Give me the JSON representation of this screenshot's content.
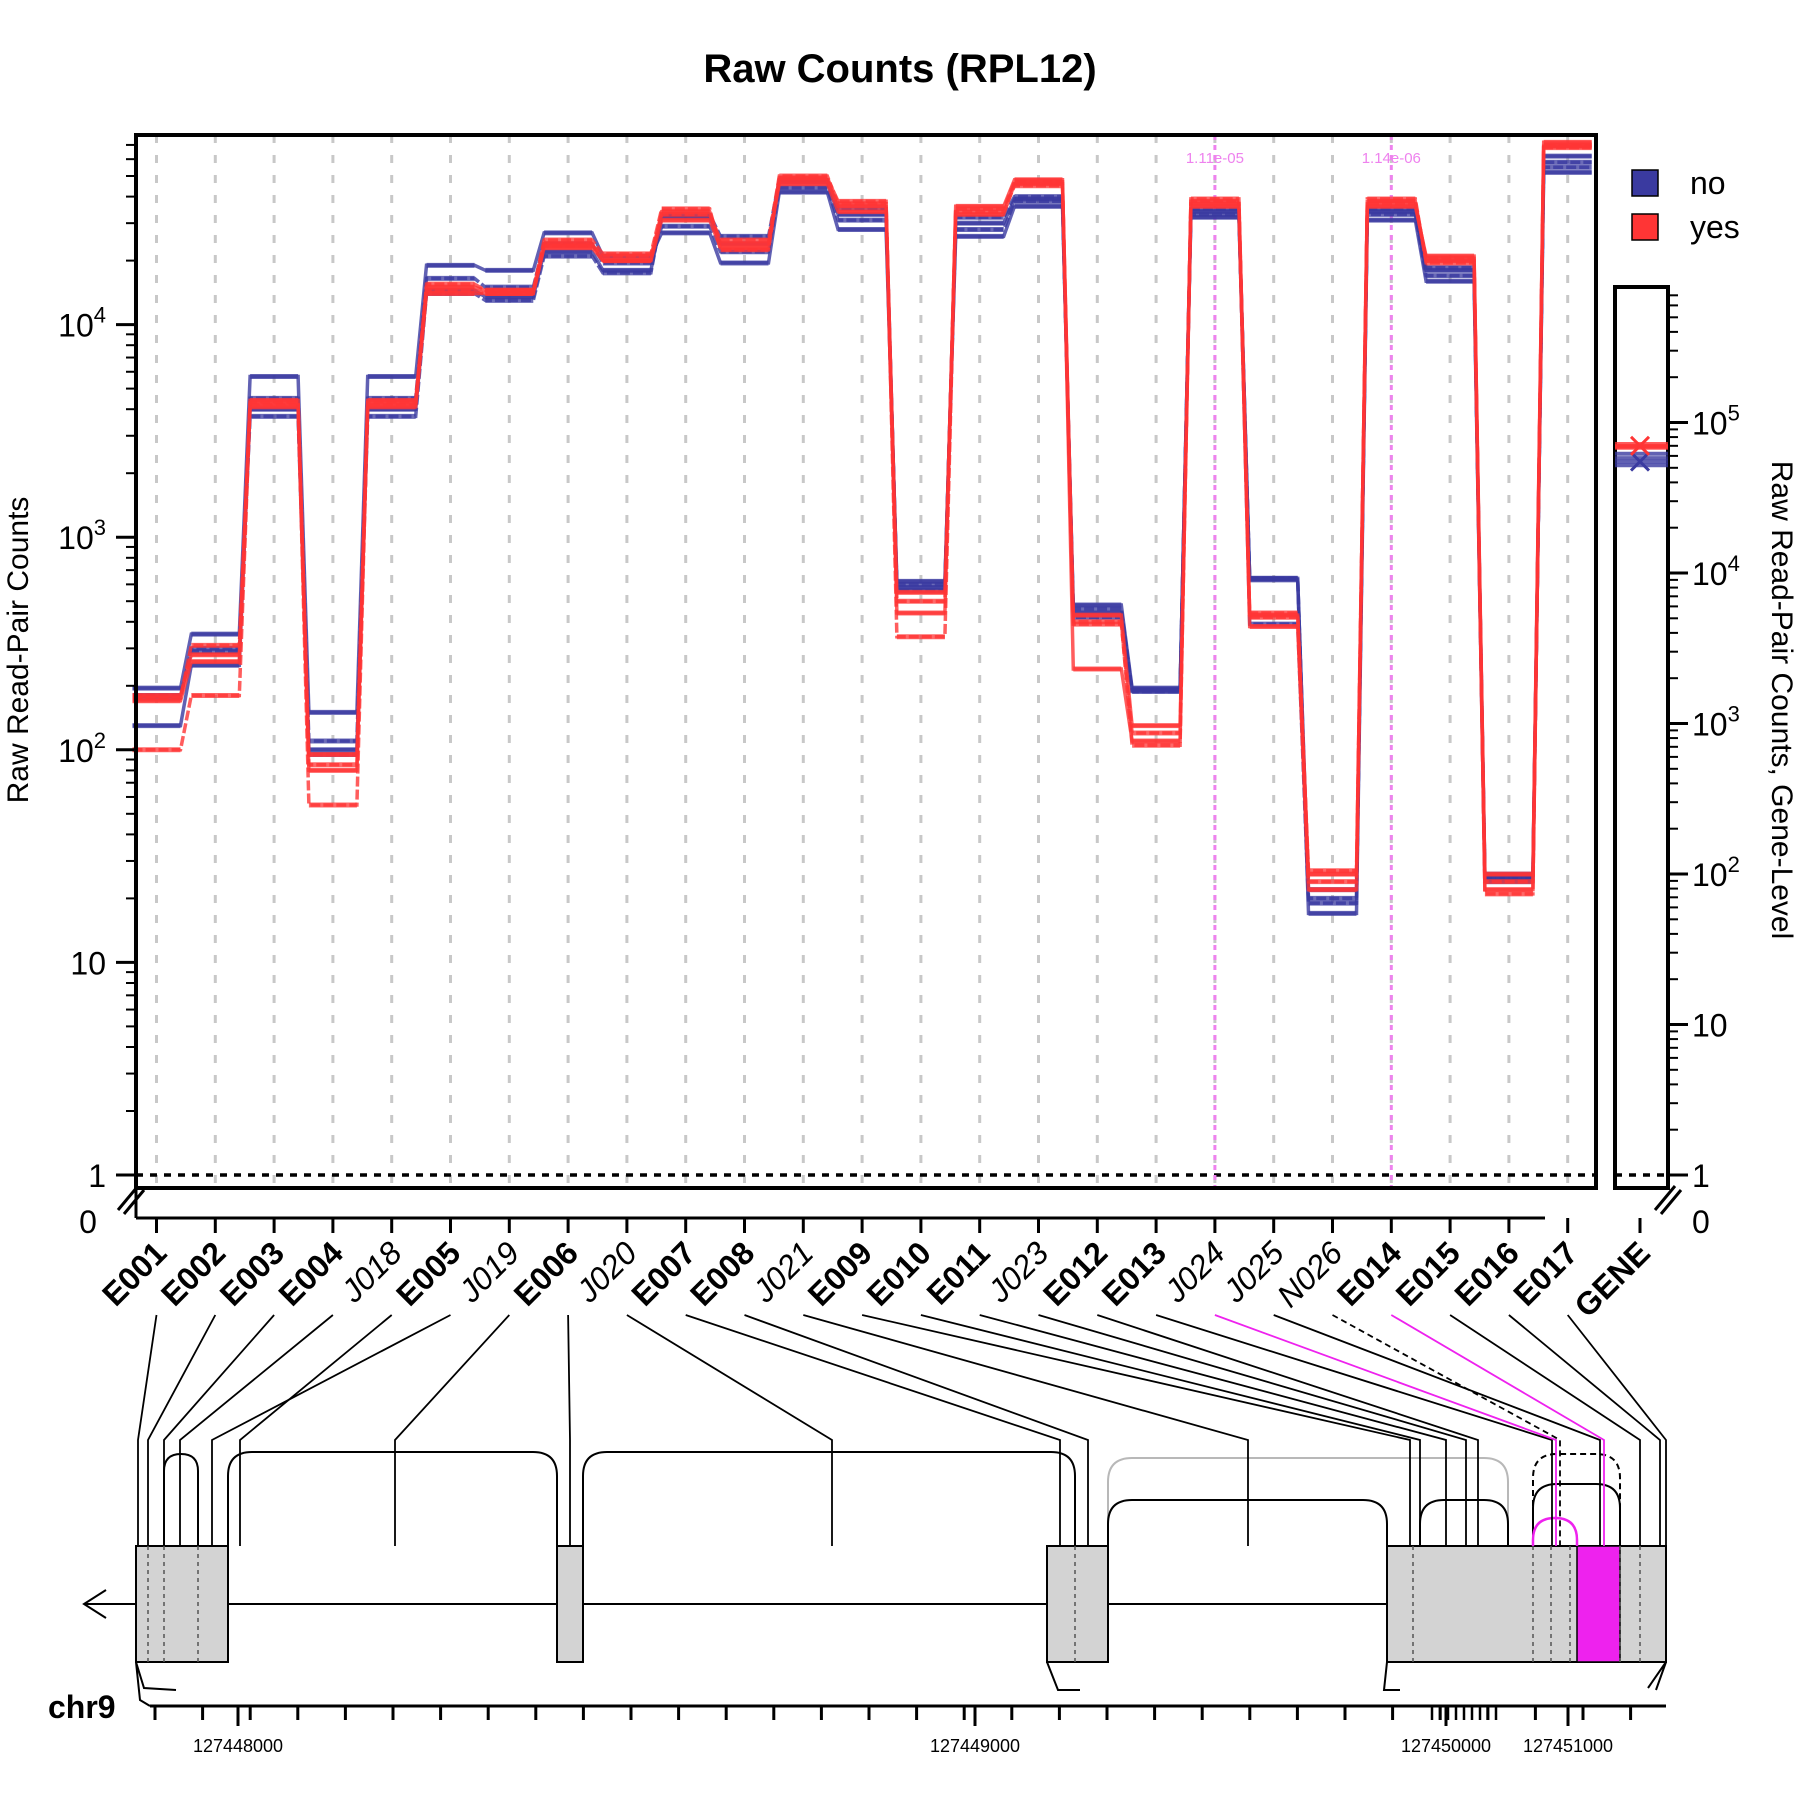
{
  "chart_data": {
    "type": "line",
    "title": "Raw Counts (RPL12)",
    "ylabel": "Raw Read-Pair Counts",
    "ylabel_right": "Raw Read-Pair Counts, Gene-Level",
    "y_scale": "log",
    "y_ticks_left": [
      "1",
      "10",
      "10^2",
      "10^3",
      "10^4"
    ],
    "y_ticks_right": [
      "1",
      "10",
      "10^2",
      "10^3",
      "10^4",
      "10^5"
    ],
    "y_zero_label": "0",
    "categories": [
      "E001",
      "E002",
      "E003",
      "E004",
      "J018",
      "E005",
      "J019",
      "E006",
      "J020",
      "E007",
      "E008",
      "J021",
      "E009",
      "E010",
      "E011",
      "J023",
      "E012",
      "E013",
      "J024",
      "J025",
      "N026",
      "E014",
      "E015",
      "E016",
      "E017"
    ],
    "category_kind": [
      "exon",
      "exon",
      "exon",
      "exon",
      "junction",
      "exon",
      "junction",
      "exon",
      "junction",
      "exon",
      "exon",
      "junction",
      "exon",
      "exon",
      "exon",
      "junction",
      "exon",
      "exon",
      "junction",
      "junction",
      "novel",
      "exon",
      "exon",
      "exon",
      "exon"
    ],
    "gene_label": "GENE",
    "legend": [
      {
        "label": "no",
        "color": "#3a3aa0"
      },
      {
        "label": "yes",
        "color": "#ff3535"
      }
    ],
    "legend_position": "top-right",
    "series": [
      {
        "name": "no",
        "color": "#3a3aa0",
        "values": [
          195,
          350,
          5700,
          150,
          5700,
          19000,
          18000,
          27000,
          21000,
          27000,
          19500,
          42000,
          28000,
          620,
          26000,
          36000,
          480,
          195,
          32000,
          640,
          17,
          31000,
          16000,
          24,
          62000
        ]
      },
      {
        "name": "no",
        "color": "#3a3aa0",
        "values": [
          175,
          300,
          4500,
          110,
          4500,
          16500,
          15000,
          24000,
          19500,
          29000,
          22000,
          44000,
          31000,
          600,
          28000,
          38000,
          460,
          192,
          33000,
          640,
          20,
          33000,
          17000,
          25,
          58000
        ]
      },
      {
        "name": "no",
        "color": "#3a3aa0",
        "values": [
          130,
          250,
          4000,
          100,
          4000,
          14500,
          13500,
          22000,
          18000,
          32000,
          24000,
          47000,
          33000,
          580,
          30000,
          39000,
          440,
          190,
          34000,
          630,
          22,
          34000,
          18000,
          26,
          52000
        ]
      },
      {
        "name": "no",
        "color": "#3a3aa0",
        "values": [
          180,
          290,
          3700,
          95,
          3700,
          14000,
          13000,
          21000,
          17500,
          33000,
          26000,
          48000,
          35000,
          560,
          32000,
          40000,
          420,
          188,
          35000,
          390,
          19,
          35000,
          18500,
          25,
          55000
        ]
      },
      {
        "name": "yes",
        "color": "#ff3535",
        "values": [
          180,
          280,
          4400,
          95,
          4400,
          15000,
          14500,
          24000,
          20000,
          31000,
          23000,
          48000,
          36000,
          550,
          33000,
          46000,
          430,
          130,
          37000,
          430,
          26,
          36000,
          21000,
          26,
          72000
        ]
      },
      {
        "name": "yes",
        "color": "#ff3535",
        "values": [
          100,
          180,
          4200,
          85,
          4200,
          14500,
          14000,
          23500,
          21000,
          33000,
          25000,
          50000,
          37000,
          500,
          35000,
          47000,
          390,
          120,
          38000,
          420,
          24,
          37000,
          20500,
          24,
          70000
        ]
      },
      {
        "name": "yes",
        "color": "#ff3535",
        "values": [
          170,
          260,
          4100,
          80,
          4100,
          14000,
          14000,
          23000,
          20000,
          34000,
          24000,
          46000,
          34000,
          440,
          36000,
          48000,
          240,
          110,
          36000,
          380,
          22,
          38000,
          20000,
          22,
          69000
        ]
      },
      {
        "name": "yes",
        "color": "#ff3535",
        "values": [
          175,
          310,
          4300,
          55,
          4300,
          15500,
          14500,
          25000,
          21500,
          35000,
          22500,
          49000,
          38000,
          340,
          34000,
          45000,
          400,
          105,
          39000,
          440,
          27,
          39000,
          19500,
          21,
          68000
        ]
      }
    ],
    "gene_markers": [
      {
        "name": "no",
        "value": 55000
      },
      {
        "name": "yes",
        "value": 70000
      }
    ],
    "significance_annotations": [
      {
        "category": "J024",
        "label": "1.11e-05",
        "color": "#ee82ee"
      },
      {
        "category": "E014",
        "label": "1.14e-06",
        "color": "#ee82ee"
      }
    ],
    "threshold_line": 1,
    "grid": true
  },
  "gene_model": {
    "chromosome": "chr9",
    "strand": "-",
    "coordinate_ticks": [
      "127448000",
      "127449000",
      "127450000",
      "127451000"
    ],
    "highlight_color": "#ee22ee",
    "exon_color": "#d3d3d3"
  }
}
